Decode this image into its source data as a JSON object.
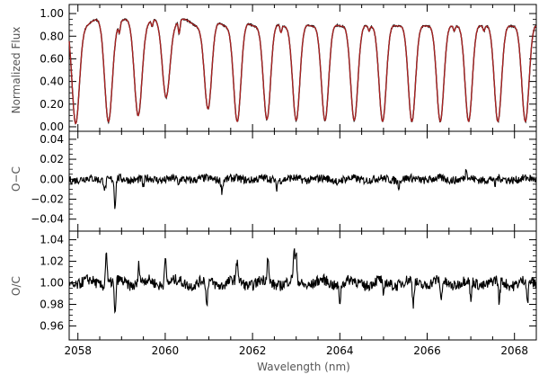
{
  "figure": {
    "xlabel": "Wavelength (nm)",
    "x_ticks": [
      "2058",
      "2060",
      "2062",
      "2064",
      "2066",
      "2068"
    ]
  },
  "chart_data": [
    {
      "type": "line",
      "title": "",
      "xlabel": "",
      "ylabel": "Normalized Flux",
      "xlim": [
        2057.8,
        2068.5
      ],
      "ylim": [
        -0.04,
        1.08
      ],
      "yticks": [
        0.0,
        0.2,
        0.4,
        0.6,
        0.8,
        1.0
      ],
      "ytick_labels": [
        "0.00",
        "0.20",
        "0.40",
        "0.60",
        "0.80",
        "1.00"
      ],
      "grid": false,
      "colors": {
        "observed": "#000000",
        "model": "#b22222"
      },
      "line_centers": [
        2057.95,
        2058.7,
        2059.38,
        2060.02,
        2060.98,
        2061.65,
        2062.33,
        2063.0,
        2063.66,
        2064.33,
        2064.98,
        2065.65,
        2066.3,
        2066.95,
        2067.62,
        2068.25
      ],
      "line_depths": [
        0.97,
        0.95,
        0.89,
        0.71,
        0.83,
        0.95,
        0.93,
        0.94,
        0.94,
        0.94,
        0.95,
        0.95,
        0.95,
        0.95,
        0.95,
        0.95
      ],
      "continuum": 0.92,
      "weak_lines": [
        {
          "x": 2058.95,
          "depth": 0.09
        },
        {
          "x": 2059.7,
          "depth": 0.06
        },
        {
          "x": 2060.32,
          "depth": 0.12
        },
        {
          "x": 2062.65,
          "depth": 0.07
        },
        {
          "x": 2064.67,
          "depth": 0.05
        },
        {
          "x": 2066.62,
          "depth": 0.05
        },
        {
          "x": 2067.3,
          "depth": 0.05
        }
      ],
      "series": [
        {
          "values_from": "line_centers",
          "role": "observed"
        },
        {
          "values_from": "line_centers",
          "role": "model"
        }
      ]
    },
    {
      "type": "line",
      "title": "",
      "xlabel": "",
      "ylabel": "O−C",
      "xlim": [
        2057.8,
        2068.5
      ],
      "ylim": [
        -0.052,
        0.048
      ],
      "yticks": [
        -0.04,
        -0.02,
        0.0,
        0.02,
        0.04
      ],
      "ytick_labels": [
        "−0.04",
        "−0.02",
        "0.00",
        "0.02",
        "0.04"
      ],
      "grid": false,
      "colors": {
        "line": "#000000"
      },
      "noise_amplitude": 0.004,
      "spikes": [
        {
          "x": 2058.85,
          "y": -0.028
        },
        {
          "x": 2058.62,
          "y": -0.01
        },
        {
          "x": 2059.5,
          "y": -0.009
        },
        {
          "x": 2060.3,
          "y": -0.008
        },
        {
          "x": 2061.3,
          "y": -0.011
        },
        {
          "x": 2062.55,
          "y": -0.008
        },
        {
          "x": 2063.95,
          "y": -0.007
        },
        {
          "x": 2065.35,
          "y": -0.006
        },
        {
          "x": 2066.9,
          "y": 0.01
        },
        {
          "x": 2067.55,
          "y": -0.008
        }
      ]
    },
    {
      "type": "line",
      "title": "",
      "xlabel": "",
      "ylabel": "O/C",
      "xlim": [
        2057.8,
        2068.5
      ],
      "ylim": [
        0.947,
        1.048
      ],
      "yticks": [
        0.96,
        0.98,
        1.0,
        1.02,
        1.04
      ],
      "ytick_labels": [
        "0.96",
        "0.98",
        "1.00",
        "1.02",
        "1.04"
      ],
      "grid": false,
      "colors": {
        "line": "#000000"
      },
      "noise_amplitude": 0.005,
      "spikes": [
        {
          "x": 2058.65,
          "y": 1.032
        },
        {
          "x": 2058.85,
          "y": 0.966
        },
        {
          "x": 2060.0,
          "y": 1.029
        },
        {
          "x": 2059.4,
          "y": 1.018
        },
        {
          "x": 2060.95,
          "y": 0.975
        },
        {
          "x": 2061.65,
          "y": 1.02
        },
        {
          "x": 2062.35,
          "y": 1.022
        },
        {
          "x": 2062.95,
          "y": 1.028
        },
        {
          "x": 2063.0,
          "y": 1.023
        },
        {
          "x": 2064.0,
          "y": 0.985
        },
        {
          "x": 2065.0,
          "y": 0.983
        },
        {
          "x": 2065.68,
          "y": 0.978
        },
        {
          "x": 2066.32,
          "y": 0.98
        },
        {
          "x": 2067.0,
          "y": 0.98
        },
        {
          "x": 2067.65,
          "y": 0.979
        },
        {
          "x": 2068.3,
          "y": 0.978
        }
      ]
    }
  ]
}
